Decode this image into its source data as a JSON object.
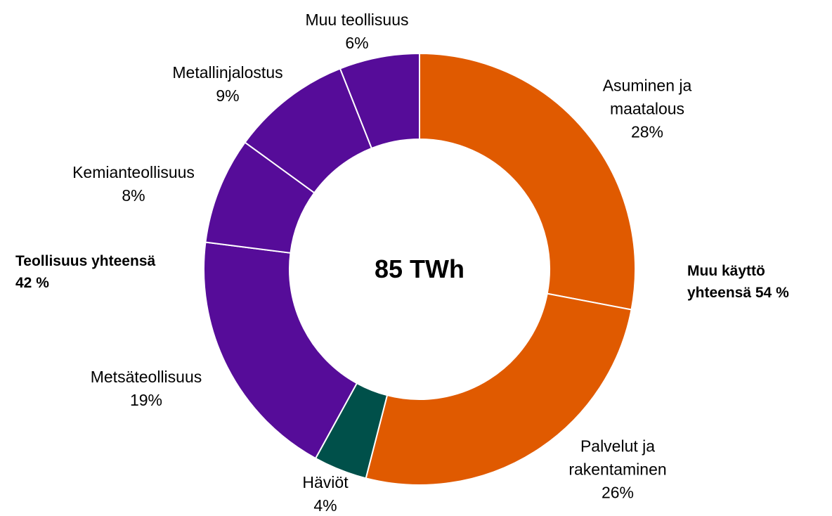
{
  "chart_data": {
    "type": "donut",
    "categories": [
      "Asuminen ja maatalous",
      "Palvelut ja rakentaminen",
      "Häviöt",
      "Metsäteollisuus",
      "Kemianteollisuus",
      "Metallinjalostus",
      "Muu teollisuus"
    ],
    "values": [
      28,
      26,
      4,
      19,
      8,
      9,
      6
    ],
    "value_labels": [
      "28%",
      "26%",
      "4%",
      "19%",
      "8%",
      "9%",
      "6%"
    ],
    "colors": [
      "#E05A00",
      "#E05A00",
      "#00504A",
      "#560C99",
      "#560C99",
      "#560C99",
      "#560C99"
    ],
    "center_label": "85 TWh",
    "annotations": [
      "Teollisuus yhteensä 42 %",
      "Muu käyttö yhteensä 54 %"
    ]
  }
}
